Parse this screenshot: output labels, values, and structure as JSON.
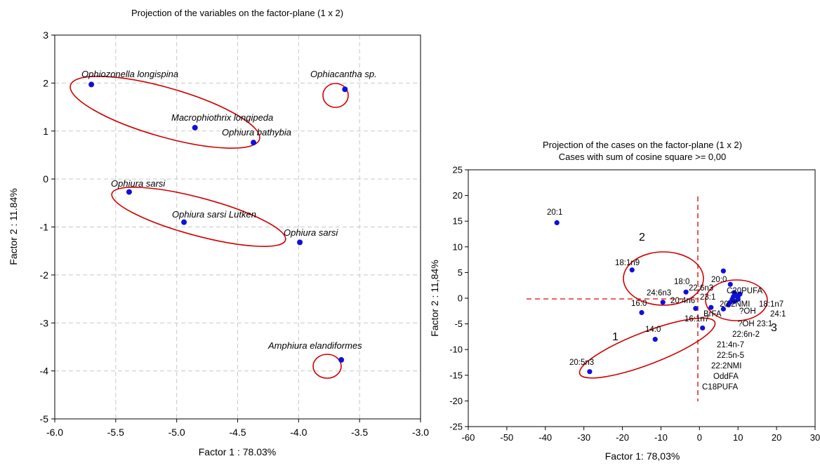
{
  "chart_data": [
    {
      "type": "scatter",
      "title": "Projection of the variables on the factor-plane (1 x 2)",
      "xlabel": "Factor 1 : 78.03%",
      "ylabel": "Factor 2 : 11.84%",
      "xlim": [
        -6.0,
        -3.0
      ],
      "ylim": [
        -5,
        3
      ],
      "xticks": [
        "-6.0",
        "-5.5",
        "-5.0",
        "-4.5",
        "-4.0",
        "-3.5",
        "-3.0"
      ],
      "yticks": [
        "3",
        "2",
        "1",
        "0",
        "-1",
        "-2",
        "-3",
        "-4",
        "-5"
      ],
      "grid": true,
      "points": [
        {
          "label": "Ophiozonella longispina",
          "x": -5.7,
          "y": 1.97
        },
        {
          "label": "Macrophiothrix longipeda",
          "x": -4.85,
          "y": 1.07
        },
        {
          "label": "Ophiura bathybia",
          "x": -4.37,
          "y": 0.76
        },
        {
          "label": "Ophiacantha sp.",
          "x": -3.62,
          "y": 1.87
        },
        {
          "label": "Ophiura sarsi",
          "x": -5.39,
          "y": -0.27
        },
        {
          "label": "Ophiura sarsi Lutken",
          "x": -4.94,
          "y": -0.9
        },
        {
          "label": "Ophiura sarsi",
          "x": -3.99,
          "y": -1.32
        },
        {
          "label": "Amphiura elandiformes",
          "x": -3.65,
          "y": -3.77
        }
      ]
    },
    {
      "type": "scatter",
      "title": "Projection of the cases on the factor-plane (1 x 2)",
      "subtitle": "Cases with sum of cosine square >= 0,00",
      "xlabel": "Factor 1: 78,03%",
      "ylabel": "Factor 2 : 11,84%",
      "xlim": [
        -60,
        30
      ],
      "ylim": [
        -25,
        25
      ],
      "xticks": [
        "-60",
        "-50",
        "-40",
        "-30",
        "-20",
        "-10",
        "0",
        "10",
        "20",
        "30"
      ],
      "yticks": [
        "25",
        "20",
        "15",
        "10",
        "5",
        "0",
        "-5",
        "-10",
        "-15",
        "-20",
        "-25"
      ],
      "grid": false,
      "groups": [
        "1",
        "2",
        "3"
      ],
      "points": [
        {
          "label": "20:1",
          "x": -37,
          "y": 14.7
        },
        {
          "label": "18:1n9",
          "x": -17.5,
          "y": 5.5
        },
        {
          "label": "18:0",
          "x": -3.5,
          "y": 1.2
        },
        {
          "label": "24:6n3",
          "x": -9.5,
          "y": -0.8
        },
        {
          "label": "16:0",
          "x": -15,
          "y": -2.8
        },
        {
          "label": "20:4n6",
          "x": -1,
          "y": -2
        },
        {
          "label": "14:0",
          "x": -11.5,
          "y": -8
        },
        {
          "label": "20:5n3",
          "x": -28.5,
          "y": -14.3
        },
        {
          "label": "16:1n7",
          "x": 0.8,
          "y": -5.8
        },
        {
          "label": "20:0",
          "x": 6.2,
          "y": 5.3
        },
        {
          "label": "C20PUFA",
          "x": 8,
          "y": 2.7
        },
        {
          "label": "23:1",
          "x": 3,
          "y": -1.8
        },
        {
          "label": "22:6n3",
          "x": 6.2,
          "y": -2.1
        },
        {
          "label": "20:2NMI",
          "x": 9,
          "y": 1.1
        },
        {
          "label": "18:1n7",
          "x": 9.5,
          "y": 0.6
        },
        {
          "label": "?OH",
          "x": 10,
          "y": 0.2
        },
        {
          "label": "24:1",
          "x": 10.5,
          "y": 0.8
        },
        {
          "label": "BrFA",
          "x": 8.5,
          "y": -0.2
        },
        {
          "label": "?OH 23:1",
          "x": 9,
          "y": -0.6
        },
        {
          "label": "22:6n-2",
          "x": 7.5,
          "y": -1.3
        },
        {
          "label": "21:4n-7",
          "x": 8,
          "y": -0.8
        },
        {
          "label": "22:5n-5",
          "x": 9.8,
          "y": 0.4
        },
        {
          "label": "22:2NMI",
          "x": 10,
          "y": -0.2
        },
        {
          "label": "OddFA",
          "x": 9.2,
          "y": 0.9
        },
        {
          "label": "C18PUFA",
          "x": 8.8,
          "y": 0.3
        }
      ]
    }
  ]
}
